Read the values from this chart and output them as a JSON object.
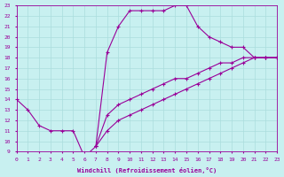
{
  "xlabel": "Windchill (Refroidissement éolien,°C)",
  "xlim": [
    0,
    23
  ],
  "ylim": [
    9,
    23
  ],
  "xticks": [
    0,
    1,
    2,
    3,
    4,
    5,
    6,
    7,
    8,
    9,
    10,
    11,
    12,
    13,
    14,
    15,
    16,
    17,
    18,
    19,
    20,
    21,
    22,
    23
  ],
  "yticks": [
    9,
    10,
    11,
    12,
    13,
    14,
    15,
    16,
    17,
    18,
    19,
    20,
    21,
    22,
    23
  ],
  "background_color": "#c8f0f0",
  "line_color": "#990099",
  "grid_color": "#aadddd",
  "curve_x": [
    0,
    1,
    2,
    3,
    4,
    5,
    6,
    7,
    8,
    9,
    10,
    11,
    12,
    13,
    14,
    15,
    16,
    17,
    18,
    19,
    20,
    21,
    22,
    23
  ],
  "curve_y": [
    14,
    13,
    11.5,
    11,
    11,
    11,
    8.5,
    9.5,
    18.5,
    21,
    22.5,
    22.5,
    22.5,
    22.5,
    23,
    23,
    21,
    20,
    19.5,
    19,
    19,
    18,
    18,
    18
  ],
  "line1_x": [
    7,
    8,
    9,
    10,
    11,
    12,
    13,
    14,
    15,
    16,
    17,
    18,
    19,
    20,
    21,
    22,
    23
  ],
  "line1_y": [
    9.5,
    11,
    12,
    12.5,
    13,
    13.5,
    14,
    14.5,
    15,
    15.5,
    16,
    16.5,
    17,
    17.5,
    18,
    18,
    18
  ],
  "line2_x": [
    7,
    8,
    9,
    10,
    11,
    12,
    13,
    14,
    15,
    16,
    17,
    18,
    19,
    20,
    21,
    22,
    23
  ],
  "line2_y": [
    9.5,
    12.5,
    13.5,
    14,
    14.5,
    15,
    15.5,
    16,
    16,
    16.5,
    17,
    17.5,
    17.5,
    18,
    18,
    18,
    18
  ],
  "font_color": "#990099",
  "marker": "+"
}
